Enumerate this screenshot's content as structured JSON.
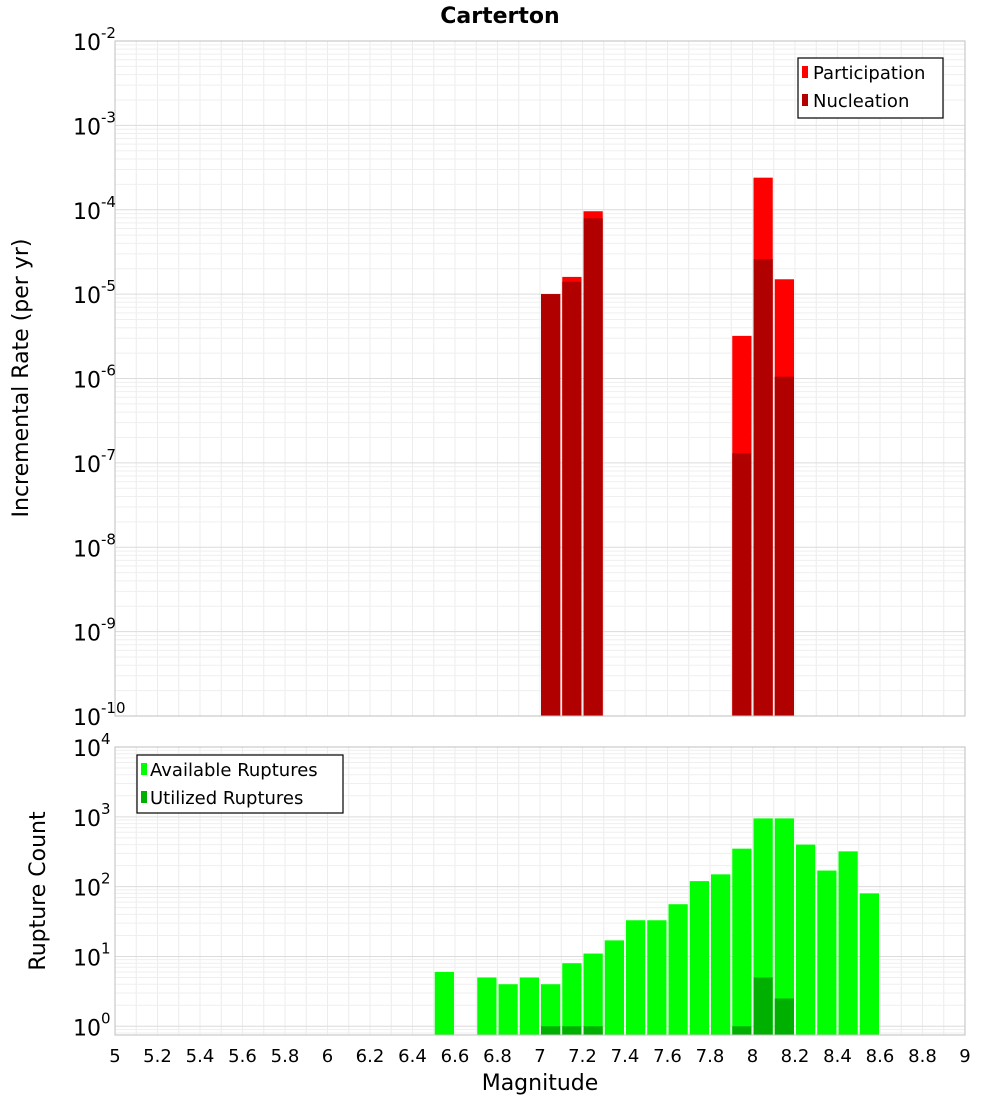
{
  "chart_data": [
    {
      "type": "bar",
      "title": "Carterton",
      "xlabel": "",
      "ylabel": "Incremental Rate (per yr)",
      "yscale": "log",
      "ylim": [
        1e-10,
        0.01
      ],
      "xlim": [
        5,
        9
      ],
      "bin_width": 0.1,
      "y_tick_exponents": [
        -10,
        -9,
        -8,
        -7,
        -6,
        -5,
        -4,
        -3,
        -2
      ],
      "legend_position": "top-right",
      "series": [
        {
          "name": "Participation",
          "color": "#ff0000",
          "x": [
            7.0,
            7.1,
            7.2,
            7.9,
            8.0,
            8.1
          ],
          "values": [
            1e-05,
            1.6e-05,
            9.6e-05,
            3.2e-06,
            0.00024,
            1.5e-05
          ]
        },
        {
          "name": "Nucleation",
          "color": "#b00000",
          "x": [
            7.0,
            7.1,
            7.2,
            7.9,
            8.0,
            8.1
          ],
          "values": [
            1e-05,
            1.4e-05,
            7.9e-05,
            1.3e-07,
            2.6e-05,
            1.05e-06
          ]
        }
      ]
    },
    {
      "type": "bar",
      "title": "",
      "xlabel": "Magnitude",
      "ylabel": "Rupture Count",
      "yscale": "log",
      "ylim": [
        0.75,
        10000
      ],
      "xlim": [
        5,
        9
      ],
      "bin_width": 0.1,
      "y_tick_exponents": [
        0,
        1,
        2,
        3,
        4
      ],
      "x_ticks": [
        "5",
        "5.2",
        "5.4",
        "5.6",
        "5.8",
        "6",
        "6.2",
        "6.4",
        "6.6",
        "6.8",
        "7",
        "7.2",
        "7.4",
        "7.6",
        "7.8",
        "8",
        "8.2",
        "8.4",
        "8.6",
        "8.8",
        "9"
      ],
      "legend_position": "top-left",
      "series": [
        {
          "name": "Available Ruptures",
          "color": "#00ff00",
          "x": [
            6.5,
            6.7,
            6.8,
            6.9,
            7.0,
            7.1,
            7.2,
            7.3,
            7.4,
            7.5,
            7.6,
            7.7,
            7.8,
            7.9,
            8.0,
            8.1,
            8.2,
            8.3,
            8.4,
            8.5
          ],
          "values": [
            6,
            5,
            4,
            5,
            4,
            8,
            11,
            17,
            33,
            33,
            56,
            120,
            150,
            350,
            950,
            950,
            400,
            170,
            320,
            80
          ]
        },
        {
          "name": "Utilized Ruptures",
          "color": "#00b000",
          "x": [
            7.0,
            7.1,
            7.2,
            7.9,
            8.0,
            8.1
          ],
          "values": [
            1,
            1,
            1,
            1,
            5,
            2.5
          ]
        }
      ]
    }
  ]
}
